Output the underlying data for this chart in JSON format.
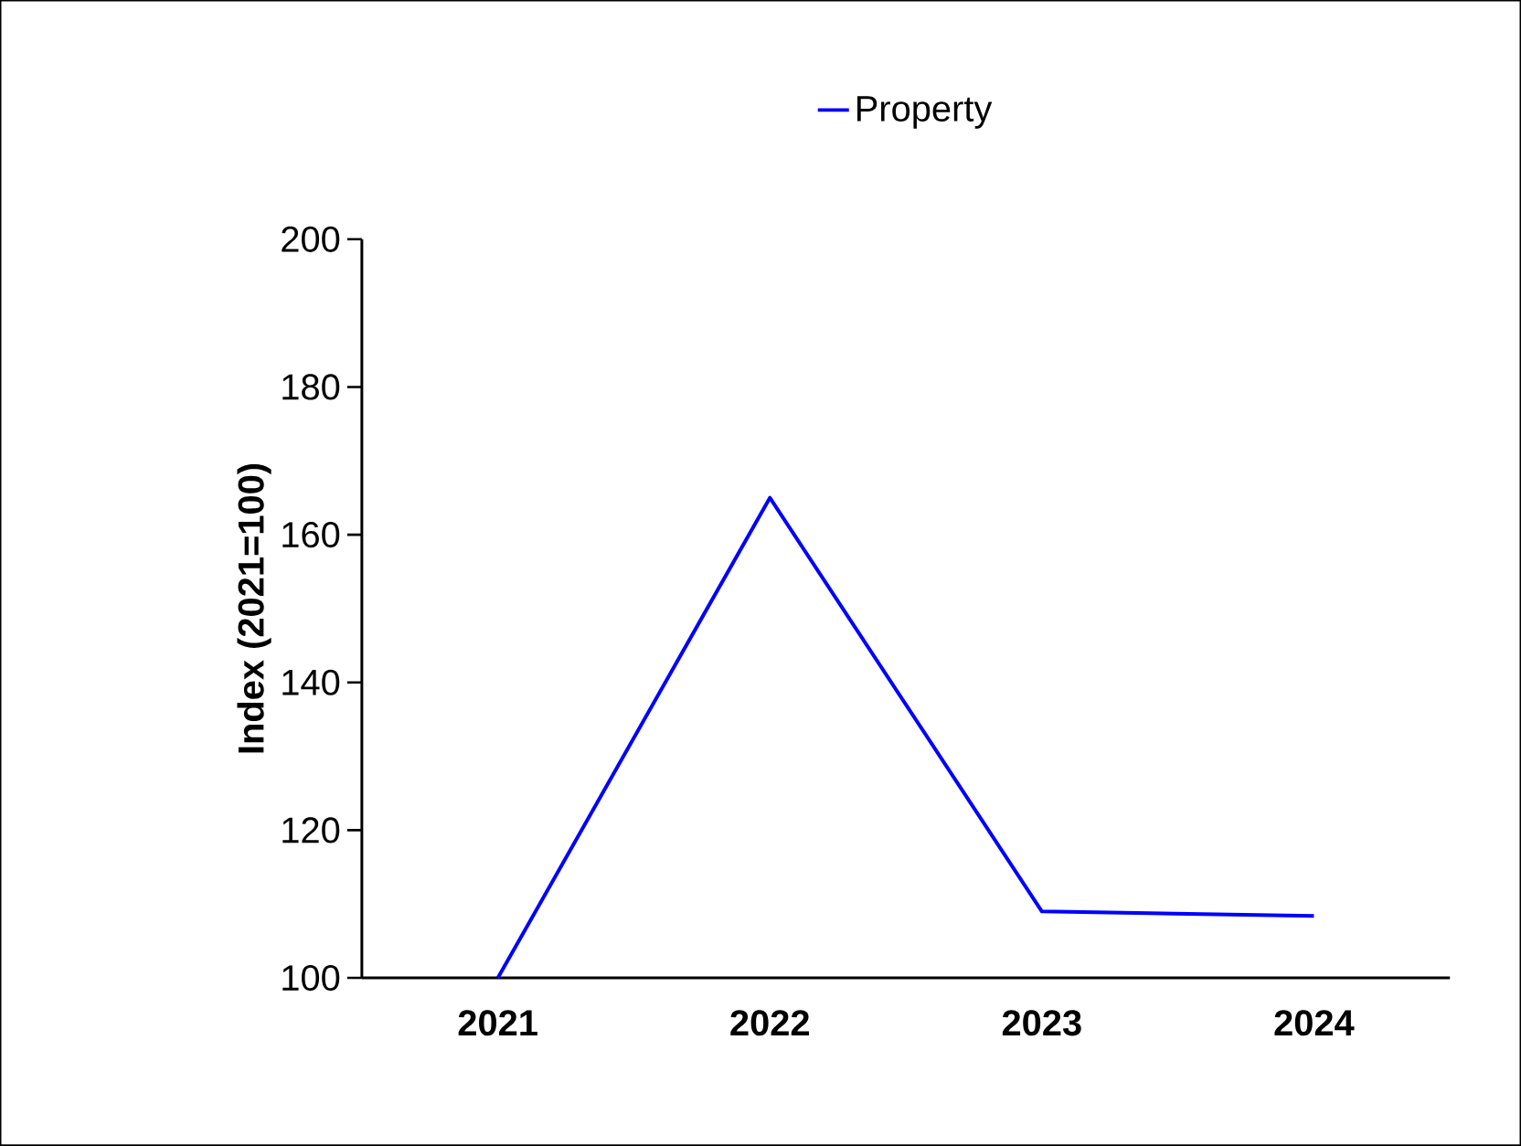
{
  "chart_data": {
    "type": "line",
    "categories": [
      "2021",
      "2022",
      "2023",
      "2024"
    ],
    "series": [
      {
        "name": "Property",
        "color": "#0000ff",
        "values": [
          100,
          165,
          109,
          108.4
        ]
      }
    ],
    "ylabel": "Index (2021=100)",
    "ylim": [
      100,
      200
    ],
    "yticks": [
      100,
      120,
      140,
      160,
      180,
      200
    ],
    "legend": "top"
  }
}
